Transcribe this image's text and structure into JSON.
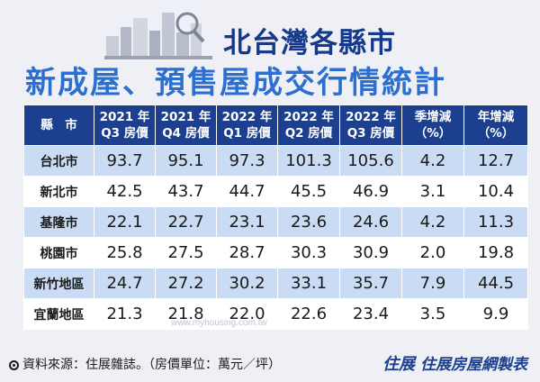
{
  "title": {
    "line1": "北台灣各縣市",
    "line2": "新成屋、預售屋成交行情統計"
  },
  "table": {
    "headers": [
      [
        "縣　市"
      ],
      [
        "2021 年",
        "Q3 房價"
      ],
      [
        "2021 年",
        "Q4 房價"
      ],
      [
        "2022 年",
        "Q1 房價"
      ],
      [
        "2022 年",
        "Q2 房價"
      ],
      [
        "2022 年",
        "Q3 房價"
      ],
      [
        "季增減",
        "（%）"
      ],
      [
        "年增減",
        "（%）"
      ]
    ],
    "rows": [
      [
        "台北市",
        "93.7",
        "95.1",
        "97.3",
        "101.3",
        "105.6",
        "4.2",
        "12.7"
      ],
      [
        "新北市",
        "42.5",
        "43.7",
        "44.7",
        "45.5",
        "46.9",
        "3.1",
        "10.4"
      ],
      [
        "基隆市",
        "22.1",
        "22.7",
        "23.1",
        "23.6",
        "24.6",
        "4.2",
        "11.3"
      ],
      [
        "桃園市",
        "25.8",
        "27.5",
        "28.7",
        "30.3",
        "30.9",
        "2.0",
        "19.8"
      ],
      [
        "新竹地區",
        "24.7",
        "27.2",
        "30.2",
        "33.1",
        "35.7",
        "7.9",
        "44.5"
      ],
      [
        "宜蘭地區",
        "21.3",
        "21.8",
        "22.0",
        "22.6",
        "23.4",
        "3.5",
        "9.9"
      ]
    ]
  },
  "footer": {
    "source": "資料來源：住展雜誌。（房價單位：萬元／坪）",
    "logo": "住展",
    "maker": "住展房屋網製表"
  },
  "watermark": "www.myhousing.com.tw",
  "colors": {
    "header_bg": "#1d3f8f",
    "row_blue": "#c9dcf3",
    "title_dark": "#17398c",
    "title_light": "#2d6fcf"
  },
  "icons": [
    "skyline-magnifier-icon",
    "source-bullet-icon"
  ]
}
